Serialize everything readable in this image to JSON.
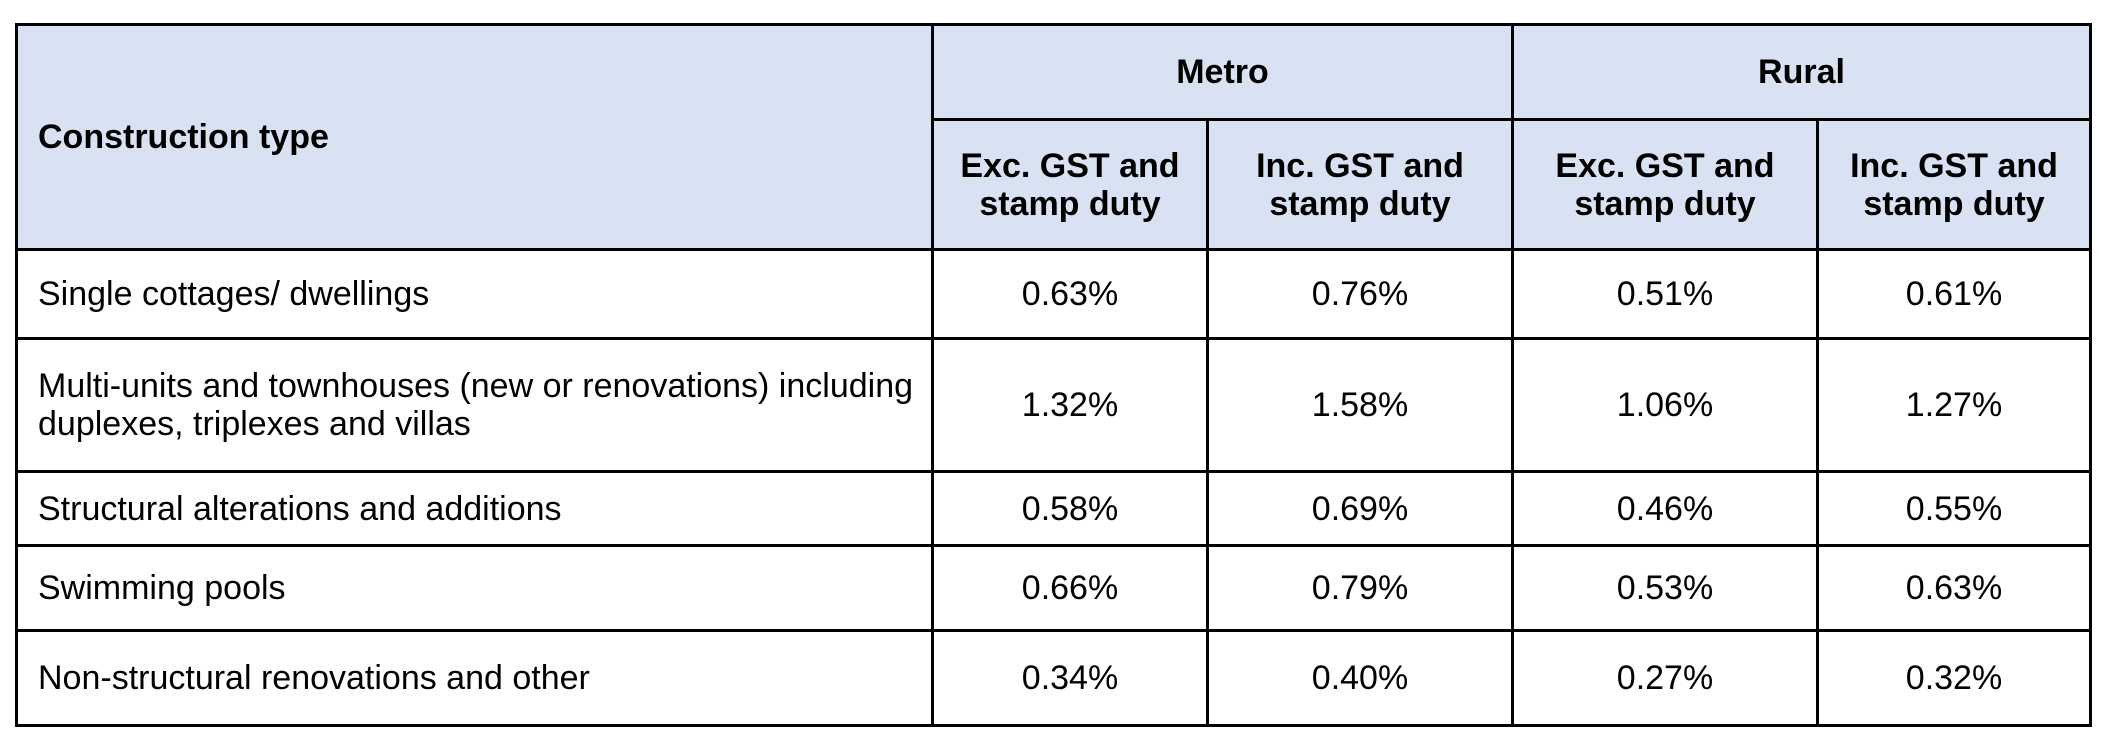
{
  "table": {
    "header": {
      "construction_type": "Construction type",
      "groups": [
        "Metro",
        "Rural"
      ],
      "subheaders": [
        "Exc. GST and stamp duty",
        "Inc. GST and stamp duty",
        "Exc. GST and stamp duty",
        "Inc. GST and stamp duty"
      ]
    },
    "rows": [
      {
        "type": "Single cottages/ dwellings",
        "values": [
          "0.63%",
          "0.76%",
          "0.51%",
          "0.61%"
        ]
      },
      {
        "type": "Multi-units and townhouses (new or renovations) including duplexes, triplexes and villas",
        "values": [
          "1.32%",
          "1.58%",
          "1.06%",
          "1.27%"
        ]
      },
      {
        "type": "Structural alterations and additions",
        "values": [
          "0.58%",
          "0.69%",
          "0.46%",
          "0.55%"
        ]
      },
      {
        "type": "Swimming pools",
        "values": [
          "0.66%",
          "0.79%",
          "0.53%",
          "0.63%"
        ]
      },
      {
        "type": "Non-structural renovations and other",
        "values": [
          "0.34%",
          "0.40%",
          "0.27%",
          "0.32%"
        ]
      }
    ]
  }
}
